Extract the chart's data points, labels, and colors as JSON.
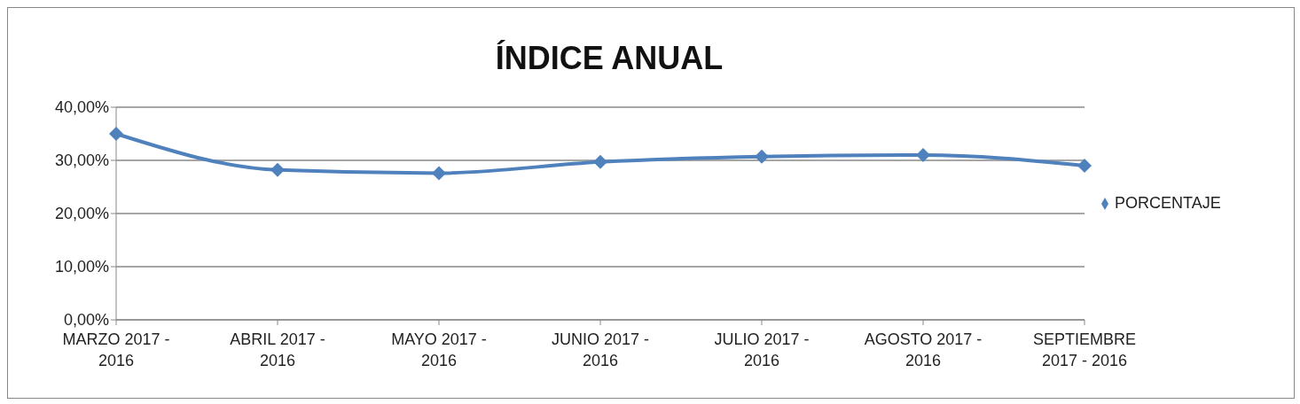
{
  "chart_data": {
    "type": "line",
    "title": "ÍNDICE ANUAL",
    "categories": [
      "MARZO 2017 - 2016",
      "ABRIL 2017 - 2016",
      "MAYO 2017 - 2016",
      "JUNIO 2017 - 2016",
      "JULIO 2017 - 2016",
      "AGOSTO 2017 - 2016",
      "SEPTIEMBRE 2017 - 2016"
    ],
    "series": [
      {
        "name": "PORCENTAJE",
        "color": "#4f81bd",
        "values": [
          35.0,
          28.2,
          27.6,
          29.7,
          30.7,
          31.0,
          29.0
        ]
      }
    ],
    "ylim": [
      0,
      40
    ],
    "yticks": [
      {
        "value": 0,
        "label": "0,00%"
      },
      {
        "value": 10,
        "label": "10,00%"
      },
      {
        "value": 20,
        "label": "20,00%"
      },
      {
        "value": 30,
        "label": "30,00%"
      },
      {
        "value": 40,
        "label": "40,00%"
      }
    ],
    "grid": "y",
    "legend": "right",
    "marker": "diamond",
    "line_style": "solid"
  }
}
